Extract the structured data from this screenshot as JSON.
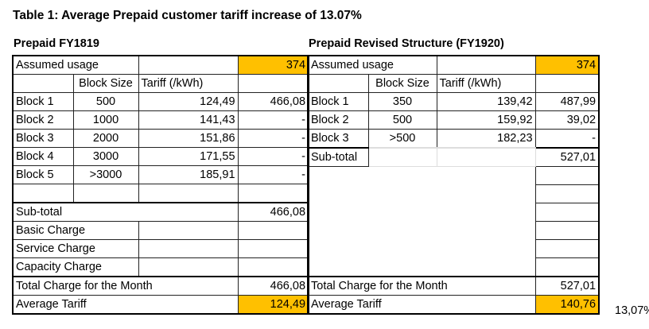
{
  "title": "Table 1: Average Prepaid customer tariff increase of 13.07%",
  "left": {
    "heading": "Prepaid FY1819",
    "assumed_label": "Assumed usage",
    "assumed_value": "374",
    "col_block_size": "Block Size",
    "col_tariff": "Tariff (/kWh)",
    "blocks": [
      {
        "name": "Block 1",
        "size": "500",
        "tariff": "124,49",
        "amount": "466,08"
      },
      {
        "name": "Block 2",
        "size": "1000",
        "tariff": "141,43",
        "amount": "-"
      },
      {
        "name": "Block 3",
        "size": "2000",
        "tariff": "151,86",
        "amount": "-"
      },
      {
        "name": "Block 4",
        "size": "3000",
        "tariff": "171,55",
        "amount": "-"
      },
      {
        "name": "Block 5",
        "size": ">3000",
        "tariff": "185,91",
        "amount": "-"
      }
    ],
    "subtotal_label": "Sub-total",
    "subtotal_value": "466,08",
    "basic_charge": "Basic Charge",
    "service_charge": "Service Charge",
    "capacity_charge": "Capacity Charge",
    "total_label": "Total Charge for the Month",
    "total_value": "466,08",
    "avg_label": "Average Tariff",
    "avg_value": "124,49"
  },
  "right": {
    "heading": "Prepaid Revised Structure (FY1920)",
    "assumed_label": "Assumed usage",
    "assumed_value": "374",
    "col_block_size": "Block Size",
    "col_tariff": "Tariff (/kWh)",
    "blocks": [
      {
        "name": "Block 1",
        "size": "350",
        "tariff": "139,42",
        "amount": "487,99"
      },
      {
        "name": "Block 2",
        "size": "500",
        "tariff": "159,92",
        "amount": "39,02"
      },
      {
        "name": "Block 3",
        "size": ">500",
        "tariff": "182,23",
        "amount": "-"
      }
    ],
    "subtotal_label": "Sub-total",
    "subtotal_value": "527,01",
    "total_label": "Total Charge for the Month",
    "total_value": "527,01",
    "avg_label": "Average Tariff",
    "avg_value": "140,76"
  },
  "increase": "13,07%",
  "highlight_color": "#ffc000"
}
